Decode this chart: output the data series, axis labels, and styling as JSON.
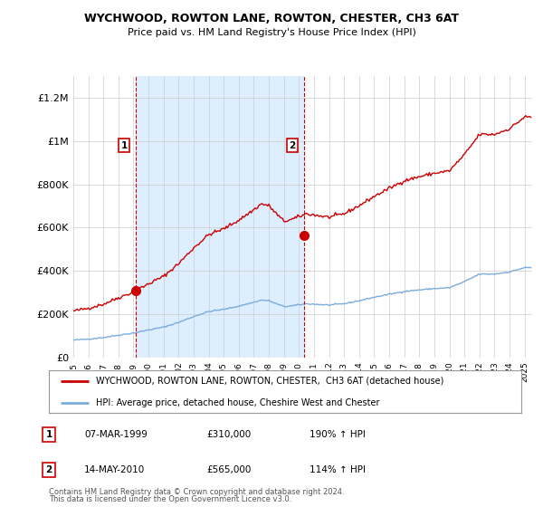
{
  "title": "WYCHWOOD, ROWTON LANE, ROWTON, CHESTER, CH3 6AT",
  "subtitle": "Price paid vs. HM Land Registry's House Price Index (HPI)",
  "ylim": [
    0,
    1300000
  ],
  "yticks": [
    0,
    200000,
    400000,
    600000,
    800000,
    1000000,
    1200000
  ],
  "ytick_labels": [
    "£0",
    "£200K",
    "£400K",
    "£600K",
    "£800K",
    "£1M",
    "£1.2M"
  ],
  "hpi_color": "#7aadde",
  "price_color": "#cc0000",
  "shade_color": "#ddeeff",
  "annotation1_date": "07-MAR-1999",
  "annotation1_price": 310000,
  "annotation1_text": "190% ↑ HPI",
  "annotation2_date": "14-MAY-2010",
  "annotation2_price": 565000,
  "annotation2_text": "114% ↑ HPI",
  "sale_year1": 1999.18,
  "sale_year2": 2010.37,
  "legend_label1": "WYCHWOOD, ROWTON LANE, ROWTON, CHESTER,  CH3 6AT (detached house)",
  "legend_label2": "HPI: Average price, detached house, Cheshire West and Chester",
  "footer1": "Contains HM Land Registry data © Crown copyright and database right 2024.",
  "footer2": "This data is licensed under the Open Government Licence v3.0.",
  "background_color": "#ffffff",
  "grid_color": "#cccccc",
  "xmin": 1995.0,
  "xmax": 2025.5
}
